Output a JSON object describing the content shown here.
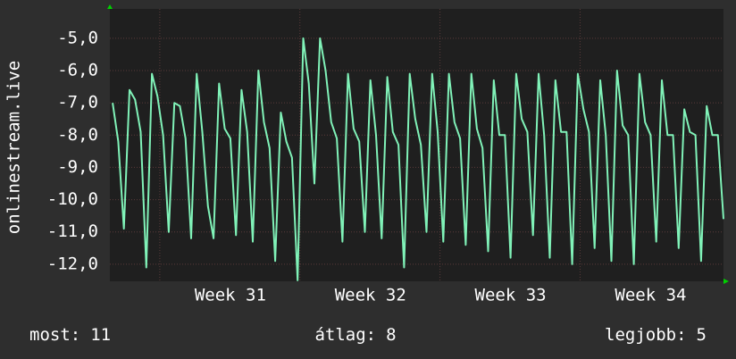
{
  "chart_data": {
    "type": "line",
    "y_label": "onlinestream.live",
    "color": "#80f2b8",
    "grid": true,
    "xlim": [
      30.14,
      34.52
    ],
    "xticks": [
      {
        "value": 31,
        "label": "Week 31"
      },
      {
        "value": 32,
        "label": "Week 32"
      },
      {
        "value": 33,
        "label": "Week 33"
      },
      {
        "value": 34,
        "label": "Week 34"
      }
    ],
    "ylim": [
      -12.53,
      -4.09
    ],
    "yticks": [
      {
        "value": -12,
        "label": "-12,0"
      },
      {
        "value": -11,
        "label": "-11,0"
      },
      {
        "value": -10,
        "label": "-10,0"
      },
      {
        "value": -9,
        "label": "-9,0"
      },
      {
        "value": -8,
        "label": "-8,0"
      },
      {
        "value": -7,
        "label": "-7,0"
      },
      {
        "value": -6,
        "label": "-6,0"
      },
      {
        "value": -5,
        "label": "-5,0"
      }
    ],
    "x": [
      30.16,
      30.2,
      30.24,
      30.28,
      30.32,
      30.36,
      30.4,
      30.44,
      30.48,
      30.52,
      30.56,
      30.6,
      30.64,
      30.68,
      30.72,
      30.76,
      30.8,
      30.84,
      30.88,
      30.92,
      30.96,
      31,
      31.04,
      31.08,
      31.12,
      31.16,
      31.2,
      31.24,
      31.28,
      31.32,
      31.36,
      31.4,
      31.44,
      31.48,
      31.52,
      31.56,
      31.6,
      31.64,
      31.68,
      31.72,
      31.76,
      31.8,
      31.84,
      31.88,
      31.92,
      31.96,
      32,
      32.04,
      32.08,
      32.12,
      32.16,
      32.2,
      32.24,
      32.28,
      32.32,
      32.36,
      32.4,
      32.44,
      32.48,
      32.52,
      32.56,
      32.6,
      32.64,
      32.68,
      32.72,
      32.76,
      32.8,
      32.84,
      32.88,
      32.92,
      32.96,
      33,
      33.04,
      33.08,
      33.12,
      33.16,
      33.2,
      33.24,
      33.28,
      33.32,
      33.36,
      33.4,
      33.44,
      33.48,
      33.52,
      33.56,
      33.6,
      33.64,
      33.68,
      33.72,
      33.76,
      33.8,
      33.84,
      33.88,
      33.92,
      33.96,
      34,
      34.04,
      34.08,
      34.12,
      34.16,
      34.2,
      34.24,
      34.28,
      34.32,
      34.36,
      34.4,
      34.44,
      34.48,
      34.52
    ],
    "values": [
      -7.0,
      -8.2,
      -10.9,
      -6.6,
      -6.9,
      -7.9,
      -12.1,
      -6.1,
      -6.8,
      -8.0,
      -11.0,
      -7.0,
      -7.1,
      -8.1,
      -11.2,
      -6.1,
      -7.9,
      -10.2,
      -11.2,
      -6.4,
      -7.8,
      -8.1,
      -11.1,
      -6.6,
      -7.9,
      -11.3,
      -6.0,
      -7.6,
      -8.4,
      -11.9,
      -7.3,
      -8.2,
      -8.7,
      -12.5,
      -5.0,
      -6.4,
      -9.5,
      -5.0,
      -6.0,
      -7.6,
      -8.1,
      -11.3,
      -6.1,
      -7.8,
      -8.2,
      -11.0,
      -6.3,
      -8.0,
      -11.2,
      -6.2,
      -7.9,
      -8.3,
      -12.1,
      -6.1,
      -7.5,
      -8.3,
      -11.0,
      -6.1,
      -7.9,
      -11.3,
      -6.1,
      -7.6,
      -8.1,
      -11.4,
      -6.1,
      -7.8,
      -8.4,
      -11.6,
      -6.3,
      -8.0,
      -8.0,
      -11.8,
      -6.1,
      -7.5,
      -7.9,
      -11.1,
      -6.1,
      -8.0,
      -11.8,
      -6.3,
      -7.9,
      -7.9,
      -12.0,
      -6.1,
      -7.2,
      -7.9,
      -11.5,
      -6.3,
      -8.0,
      -11.9,
      -6.0,
      -7.7,
      -8.0,
      -12.0,
      -6.1,
      -7.6,
      -8.0,
      -11.3,
      -6.3,
      -8.0,
      -8.0,
      -11.5,
      -7.2,
      -7.9,
      -8.0,
      -11.9,
      -7.1,
      -8.0,
      -8.0,
      -10.6
    ],
    "stats": [
      {
        "label": "most:",
        "value": 11
      },
      {
        "label": "átlag:",
        "value": 8
      },
      {
        "label": "legjobb:",
        "value": 5
      }
    ]
  }
}
